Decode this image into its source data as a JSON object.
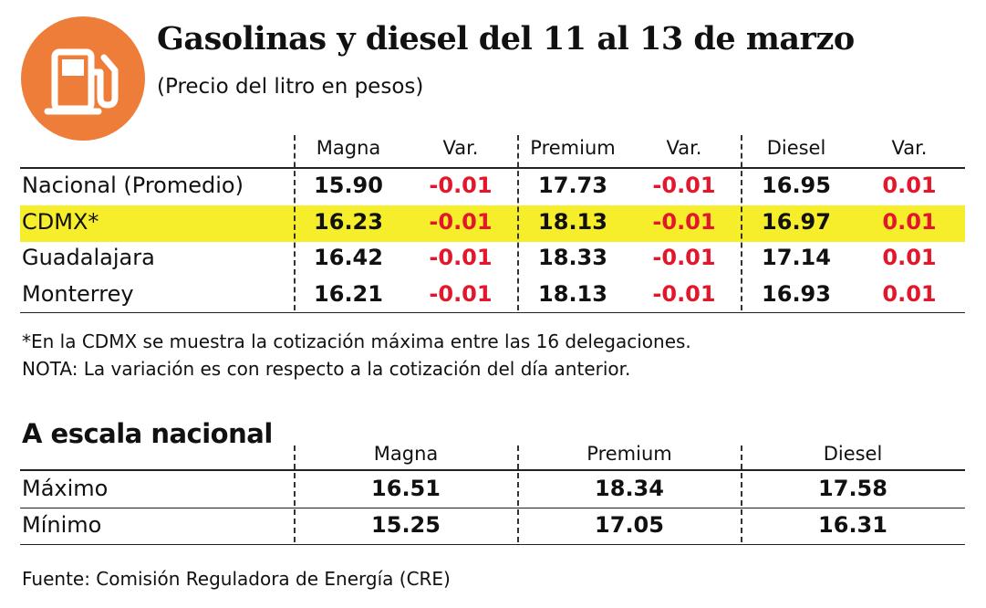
{
  "header": {
    "title": "Gasolinas y diesel del 11 al 13 de marzo",
    "subtitle": "(Precio del litro en pesos)"
  },
  "table": {
    "columns": [
      "Magna",
      "Var.",
      "Premium",
      "Var.",
      "Diesel",
      "Var."
    ],
    "rows": [
      {
        "label": "Nacional (Promedio)",
        "cells": [
          "15.90",
          "-0.01",
          "17.73",
          "-0.01",
          "16.95",
          "0.01"
        ]
      },
      {
        "label": "CDMX*",
        "cells": [
          "16.23",
          "-0.01",
          "18.13",
          "-0.01",
          "16.97",
          "0.01"
        ]
      },
      {
        "label": "Guadalajara",
        "cells": [
          "16.42",
          "-0.01",
          "18.33",
          "-0.01",
          "17.14",
          "0.01"
        ]
      },
      {
        "label": "Monterrey",
        "cells": [
          "16.21",
          "-0.01",
          "18.13",
          "-0.01",
          "16.93",
          "0.01"
        ]
      }
    ]
  },
  "notes": [
    "*En la CDMX se muestra la cotización máxima entre las 16 delegaciones.",
    "NOTA: La variación es con respecto a la cotización del día anterior."
  ],
  "national": {
    "title": "A escala nacional",
    "columns": [
      "Magna",
      "Premium",
      "Diesel"
    ],
    "rows": [
      {
        "label": "Máximo",
        "cells": [
          "16.51",
          "18.34",
          "17.58"
        ]
      },
      {
        "label": "Mínimo",
        "cells": [
          "15.25",
          "17.05",
          "16.31"
        ]
      }
    ]
  },
  "source": "Fuente: Comisión Reguladora de Energía (CRE)"
}
